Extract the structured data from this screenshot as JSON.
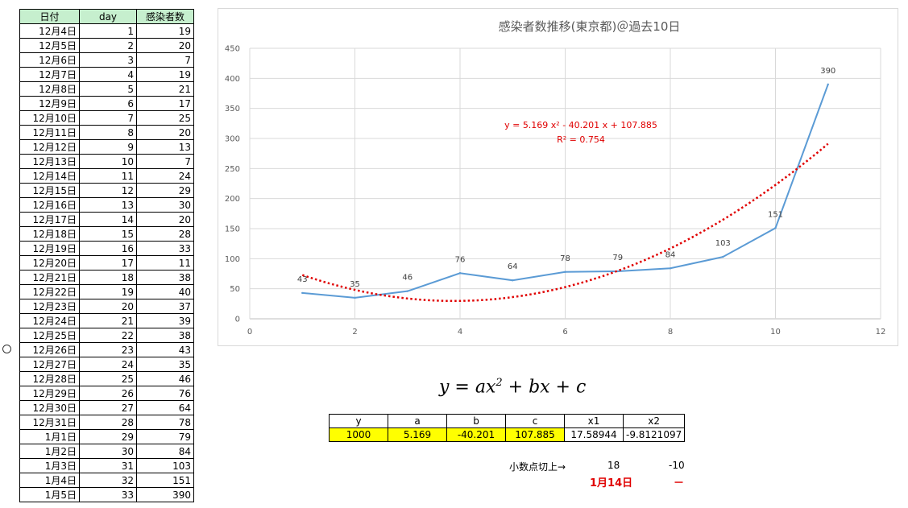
{
  "table": {
    "headers": [
      "日付",
      "day",
      "感染者数"
    ],
    "rows": [
      [
        "12月4日",
        "1",
        "19"
      ],
      [
        "12月5日",
        "2",
        "20"
      ],
      [
        "12月6日",
        "3",
        "7"
      ],
      [
        "12月7日",
        "4",
        "19"
      ],
      [
        "12月8日",
        "5",
        "21"
      ],
      [
        "12月9日",
        "6",
        "17"
      ],
      [
        "12月10日",
        "7",
        "25"
      ],
      [
        "12月11日",
        "8",
        "20"
      ],
      [
        "12月12日",
        "9",
        "13"
      ],
      [
        "12月13日",
        "10",
        "7"
      ],
      [
        "12月14日",
        "11",
        "24"
      ],
      [
        "12月15日",
        "12",
        "29"
      ],
      [
        "12月16日",
        "13",
        "30"
      ],
      [
        "12月17日",
        "14",
        "20"
      ],
      [
        "12月18日",
        "15",
        "28"
      ],
      [
        "12月19日",
        "16",
        "33"
      ],
      [
        "12月20日",
        "17",
        "11"
      ],
      [
        "12月21日",
        "18",
        "38"
      ],
      [
        "12月22日",
        "19",
        "40"
      ],
      [
        "12月23日",
        "20",
        "37"
      ],
      [
        "12月24日",
        "21",
        "39"
      ],
      [
        "12月25日",
        "22",
        "38"
      ],
      [
        "12月26日",
        "23",
        "43"
      ],
      [
        "12月27日",
        "24",
        "35"
      ],
      [
        "12月28日",
        "25",
        "46"
      ],
      [
        "12月29日",
        "26",
        "76"
      ],
      [
        "12月30日",
        "27",
        "64"
      ],
      [
        "12月31日",
        "28",
        "78"
      ],
      [
        "1月1日",
        "29",
        "79"
      ],
      [
        "1月2日",
        "30",
        "84"
      ],
      [
        "1月3日",
        "31",
        "103"
      ],
      [
        "1月4日",
        "32",
        "151"
      ],
      [
        "1月5日",
        "33",
        "390"
      ]
    ]
  },
  "chart_data": {
    "type": "line",
    "title": "感染者数推移(東京都)＠過去10日",
    "x": [
      1,
      2,
      3,
      4,
      5,
      6,
      7,
      8,
      9,
      10,
      11
    ],
    "series": [
      {
        "values": [
          43,
          35,
          46,
          76,
          64,
          78,
          79,
          84,
          103,
          151,
          390
        ],
        "color": "#5b9bd5"
      }
    ],
    "data_labels": [
      "43",
      "35",
      "46",
      "76",
      "64",
      "78",
      "79",
      "84",
      "103",
      "151",
      "390"
    ],
    "trendline": {
      "type": "polynomial-2",
      "a": 5.169,
      "b": -40.201,
      "c": 107.885,
      "equation": "y = 5.169 x² - 40.201 x + 107.885",
      "r2": "R² = 0.754",
      "color": "#e00000"
    },
    "xlim": [
      0,
      12
    ],
    "ylim": [
      0,
      450
    ],
    "x_ticks": [
      "0",
      "2",
      "4",
      "6",
      "8",
      "10",
      "12"
    ],
    "y_ticks": [
      "0",
      "50",
      "100",
      "150",
      "200",
      "250",
      "300",
      "350",
      "400",
      "450"
    ],
    "grid": true
  },
  "equation": "y = ax² + bx + c",
  "coef_table": {
    "headers": [
      "y",
      "a",
      "b",
      "c",
      "x1",
      "x2"
    ],
    "values": [
      "1000",
      "5.169",
      "-40.201",
      "107.885",
      "17.58944",
      "-9.8121097"
    ]
  },
  "roundup": {
    "label": "小数点切上→",
    "x1": "18",
    "x2": "-10",
    "date_result": "1月14日",
    "x2_result": "－"
  },
  "colors": {
    "header_green": "#c6efce",
    "highlight_yellow": "#ffff00",
    "line_blue": "#5b9bd5",
    "trend_red": "#e00000"
  }
}
